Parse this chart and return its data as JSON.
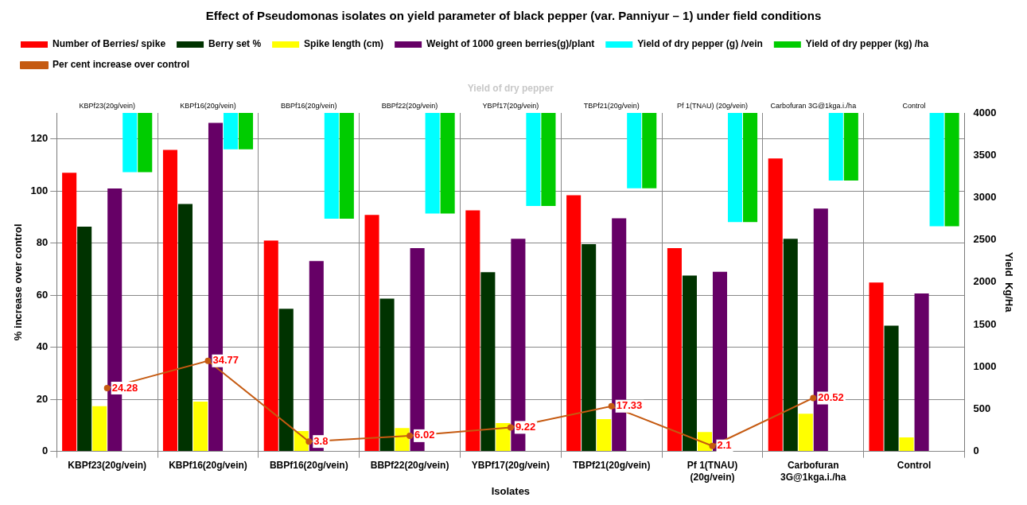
{
  "chart_data": {
    "type": "bar",
    "title": "Effect of Pseudomonas isolates on yield parameter of black pepper (var. Panniyur – 1) under field conditions",
    "xlabel": "Isolates",
    "ylabel": "% increase over control",
    "y2label": "Yield  Kg/Ha",
    "categories": [
      "KBPf23(20g/vein)",
      "KBPf16(20g/vein)",
      "BBPf16(20g/vein)",
      "BBPf22(20g/vein)",
      "YBPf17(20g/vein)",
      "TBPf21(20g/vein)",
      "Pf 1(TNAU) (20g/vein)",
      "Carbofuran 3G@1kga.i./ha",
      "Control"
    ],
    "series": [
      {
        "name": "Number of Berries/ spike",
        "color": "#ff0000",
        "values": [
          107,
          115.8,
          81,
          90.8,
          92.6,
          98.4,
          78.1,
          112.5,
          64.9
        ]
      },
      {
        "name": "Berry set %",
        "color": "#003300",
        "values": [
          86.3,
          95,
          54.8,
          58.7,
          68.8,
          79.6,
          67.5,
          81.7,
          48.3
        ]
      },
      {
        "name": "Spike length (cm)",
        "color": "#ffff00",
        "values": [
          17.4,
          19.1,
          7.8,
          9,
          10.9,
          12.4,
          7.4,
          14.5,
          5.4
        ]
      },
      {
        "name": "Weight of 1000 green berries(g)/plant",
        "color": "#660066",
        "values": [
          101,
          126.2,
          73.1,
          78.1,
          81.7,
          89.5,
          69,
          93.3,
          60.7
        ]
      },
      {
        "name": "Yield of dry pepper (g) /vein",
        "color": "#00ffff",
        "axis": "y2",
        "base": [
          3300,
          3570,
          2750,
          2810,
          2900,
          3110,
          2710,
          3200,
          2660
        ],
        "values": [
          700,
          430,
          1250,
          1190,
          1100,
          890,
          1290,
          800,
          1340
        ]
      },
      {
        "name": "Yield of dry pepper (kg) /ha",
        "color": "#00cc00",
        "axis": "y2",
        "base": [
          3300,
          3570,
          2750,
          2810,
          2900,
          3110,
          2710,
          3200,
          2660
        ],
        "values": [
          700,
          430,
          1250,
          1190,
          1100,
          890,
          1290,
          800,
          1340
        ]
      },
      {
        "name": "Per cent increase over control",
        "type": "line",
        "color": "#c55a11",
        "marker": "circle",
        "values": [
          24.28,
          34.77,
          3.8,
          6.02,
          9.22,
          17.33,
          2.1,
          20.52,
          null
        ],
        "value_labels": [
          "24.28",
          "34.77",
          "3.8",
          "6.02",
          "9.22",
          "17.33",
          "2.1",
          "20.52",
          null
        ]
      }
    ],
    "ylim": [
      0,
      130
    ],
    "yticks": [
      0,
      20,
      40,
      60,
      80,
      100,
      120
    ],
    "y2lim": [
      0,
      4000
    ],
    "y2ticks": [
      0,
      500,
      1000,
      1500,
      2000,
      2500,
      3000,
      3500,
      4000
    ],
    "grid": true,
    "legend": "top",
    "annotations": [
      "Yield of dry pepper",
      "KBPf23(20g/vein)",
      "KBPf16(20g/vein)",
      "BBPf16(20g/vein)",
      "BBPf22(20g/vein)",
      "YBPf17(20g/vein)",
      "TBPf21(20g/vein)",
      "Pf 1(TNAU) (20g/vein)",
      "Carbofuran 3G@1kga.i./ha",
      "Control"
    ]
  }
}
